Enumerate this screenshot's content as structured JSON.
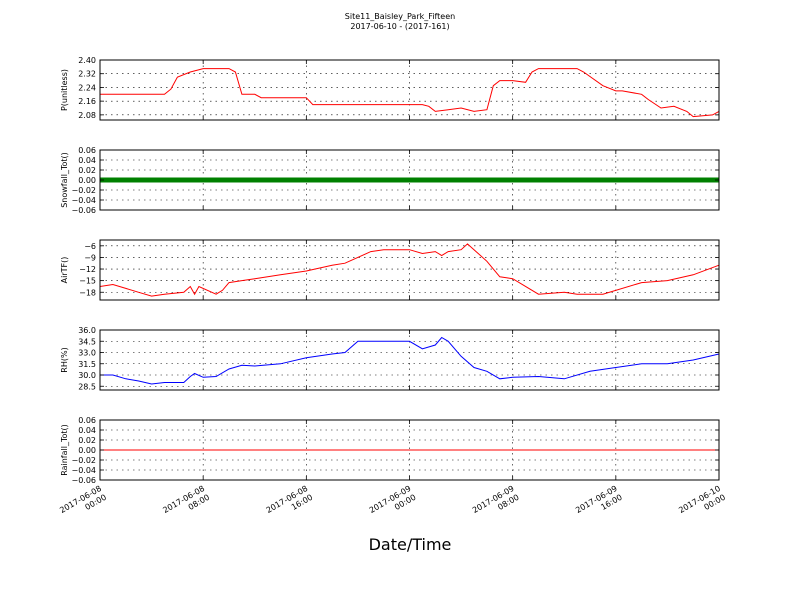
{
  "title": "Site11_Baisley_Park_Fifteen",
  "subtitle": "2017-06-10 - (2017-161)",
  "xlabel": "Date/Time",
  "x_ticks": [
    {
      "line1": "2017-06-08",
      "line2": "00:00"
    },
    {
      "line1": "2017-06-08",
      "line2": "08:00"
    },
    {
      "line1": "2017-06-08",
      "line2": "16:00"
    },
    {
      "line1": "2017-06-09",
      "line2": "00:00"
    },
    {
      "line1": "2017-06-09",
      "line2": "08:00"
    },
    {
      "line1": "2017-06-09",
      "line2": "16:00"
    },
    {
      "line1": "2017-06-10",
      "line2": "00:00"
    }
  ],
  "chart_data": [
    {
      "type": "line",
      "ylabel": "P(unitless)",
      "ylim": [
        2.05,
        2.4
      ],
      "yticks": [
        "2.40",
        "2.32",
        "2.24",
        "2.16",
        "2.08"
      ],
      "ytick_values": [
        2.4,
        2.32,
        2.24,
        2.16,
        2.08
      ],
      "xlim": [
        "2017-06-08 00:00",
        "2017-06-10 00:00"
      ],
      "grid": true,
      "series": [
        {
          "color": "#ff0000",
          "x": [
            "2017-06-08 00:00",
            "2017-06-08 05:00",
            "2017-06-08 05:30",
            "2017-06-08 06:00",
            "2017-06-08 07:00",
            "2017-06-08 08:00",
            "2017-06-08 10:00",
            "2017-06-08 10:30",
            "2017-06-08 11:00",
            "2017-06-08 12:00",
            "2017-06-08 12:30",
            "2017-06-08 16:00",
            "2017-06-08 16:30",
            "2017-06-09 01:00",
            "2017-06-09 01:30",
            "2017-06-09 02:00",
            "2017-06-09 03:00",
            "2017-06-09 04:00",
            "2017-06-09 05:00",
            "2017-06-09 06:00",
            "2017-06-09 06:30",
            "2017-06-09 07:00",
            "2017-06-09 08:00",
            "2017-06-09 09:00",
            "2017-06-09 09:30",
            "2017-06-09 10:00",
            "2017-06-09 13:00",
            "2017-06-09 13:30",
            "2017-06-09 15:00",
            "2017-06-09 16:00",
            "2017-06-09 16:30",
            "2017-06-09 18:00",
            "2017-06-09 18:30",
            "2017-06-09 19:30",
            "2017-06-09 20:30",
            "2017-06-09 21:30",
            "2017-06-09 22:00",
            "2017-06-09 23:30",
            "2017-06-10 00:00"
          ],
          "y": [
            2.2,
            2.2,
            2.23,
            2.3,
            2.33,
            2.35,
            2.35,
            2.33,
            2.2,
            2.2,
            2.18,
            2.18,
            2.14,
            2.14,
            2.13,
            2.1,
            2.11,
            2.12,
            2.1,
            2.11,
            2.25,
            2.28,
            2.28,
            2.27,
            2.33,
            2.35,
            2.35,
            2.33,
            2.25,
            2.22,
            2.22,
            2.2,
            2.17,
            2.12,
            2.13,
            2.1,
            2.07,
            2.08,
            2.1
          ]
        }
      ]
    },
    {
      "type": "scatter",
      "ylabel": "Snowfall_Tot()",
      "ylim": [
        -0.06,
        0.06
      ],
      "yticks": [
        "0.06",
        "0.04",
        "0.02",
        "0.00",
        "−0.02",
        "−0.04",
        "−0.06"
      ],
      "ytick_values": [
        0.06,
        0.04,
        0.02,
        0.0,
        -0.02,
        -0.04,
        -0.06
      ],
      "xlim": [
        "2017-06-08 00:00",
        "2017-06-10 00:00"
      ],
      "grid": true,
      "series": [
        {
          "color": "#008000",
          "x": [
            "2017-06-08 00:00",
            "2017-06-10 00:00"
          ],
          "y": [
            0.0,
            0.0
          ],
          "dense_markers": true
        }
      ]
    },
    {
      "type": "line",
      "ylabel": "AirTF()",
      "ylim": [
        -20,
        -4.5
      ],
      "yticks": [
        "−6",
        "−9",
        "−12",
        "−15",
        "−18"
      ],
      "ytick_values": [
        -6,
        -9,
        -12,
        -15,
        -18
      ],
      "xlim": [
        "2017-06-08 00:00",
        "2017-06-10 00:00"
      ],
      "grid": true,
      "series": [
        {
          "color": "#ff0000",
          "x": [
            "2017-06-08 00:00",
            "2017-06-08 01:00",
            "2017-06-08 02:00",
            "2017-06-08 03:00",
            "2017-06-08 04:00",
            "2017-06-08 05:00",
            "2017-06-08 06:30",
            "2017-06-08 07:00",
            "2017-06-08 07:20",
            "2017-06-08 07:40",
            "2017-06-08 09:00",
            "2017-06-08 09:30",
            "2017-06-08 10:00",
            "2017-06-08 11:00",
            "2017-06-08 12:00",
            "2017-06-08 14:00",
            "2017-06-08 16:00",
            "2017-06-08 18:00",
            "2017-06-08 19:00",
            "2017-06-08 21:00",
            "2017-06-08 22:00",
            "2017-06-09 00:00",
            "2017-06-09 01:00",
            "2017-06-09 02:00",
            "2017-06-09 02:30",
            "2017-06-09 03:00",
            "2017-06-09 04:00",
            "2017-06-09 04:30",
            "2017-06-09 05:00",
            "2017-06-09 06:00",
            "2017-06-09 07:00",
            "2017-06-09 08:00",
            "2017-06-09 10:00",
            "2017-06-09 12:00",
            "2017-06-09 13:00",
            "2017-06-09 15:00",
            "2017-06-09 18:00",
            "2017-06-09 20:00",
            "2017-06-09 22:00",
            "2017-06-10 00:00"
          ],
          "y": [
            -16.5,
            -16.0,
            -17.0,
            -18.0,
            -19.0,
            -18.5,
            -18.0,
            -16.5,
            -18.5,
            -16.5,
            -18.5,
            -17.5,
            -15.5,
            -15.0,
            -14.5,
            -13.5,
            -12.5,
            -11.0,
            -10.5,
            -7.5,
            -7.0,
            -7.0,
            -8.0,
            -7.5,
            -8.5,
            -7.5,
            -7.0,
            -5.5,
            -7.0,
            -10.0,
            -14.0,
            -14.5,
            -18.5,
            -18.0,
            -18.5,
            -18.5,
            -15.5,
            -15.0,
            -13.5,
            -11.0
          ]
        }
      ]
    },
    {
      "type": "line",
      "ylabel": "RH(%)",
      "ylim": [
        28.0,
        36.0
      ],
      "yticks": [
        "36.0",
        "34.5",
        "33.0",
        "31.5",
        "30.0",
        "28.5"
      ],
      "ytick_values": [
        36.0,
        34.5,
        33.0,
        31.5,
        30.0,
        28.5
      ],
      "xlim": [
        "2017-06-08 00:00",
        "2017-06-10 00:00"
      ],
      "grid": true,
      "series": [
        {
          "color": "#0000ff",
          "x": [
            "2017-06-08 00:00",
            "2017-06-08 01:00",
            "2017-06-08 02:00",
            "2017-06-08 03:00",
            "2017-06-08 04:00",
            "2017-06-08 05:00",
            "2017-06-08 06:00",
            "2017-06-08 06:30",
            "2017-06-08 07:00",
            "2017-06-08 07:20",
            "2017-06-08 08:00",
            "2017-06-08 09:00",
            "2017-06-08 10:00",
            "2017-06-08 11:00",
            "2017-06-08 12:00",
            "2017-06-08 14:00",
            "2017-06-08 16:00",
            "2017-06-08 18:00",
            "2017-06-08 19:00",
            "2017-06-08 20:00",
            "2017-06-08 22:00",
            "2017-06-09 00:00",
            "2017-06-09 01:00",
            "2017-06-09 02:00",
            "2017-06-09 02:30",
            "2017-06-09 03:00",
            "2017-06-09 04:00",
            "2017-06-09 05:00",
            "2017-06-09 06:00",
            "2017-06-09 07:00",
            "2017-06-09 08:00",
            "2017-06-09 10:00",
            "2017-06-09 12:00",
            "2017-06-09 14:00",
            "2017-06-09 16:00",
            "2017-06-09 18:00",
            "2017-06-09 20:00",
            "2017-06-09 22:00",
            "2017-06-10 00:00"
          ],
          "y": [
            30.0,
            30.0,
            29.5,
            29.2,
            28.8,
            29.0,
            29.0,
            29.0,
            29.8,
            30.2,
            29.7,
            29.8,
            30.8,
            31.3,
            31.2,
            31.5,
            32.3,
            32.8,
            33.0,
            34.5,
            34.5,
            34.5,
            33.5,
            34.0,
            35.0,
            34.5,
            32.5,
            31.0,
            30.5,
            29.5,
            29.7,
            29.8,
            29.5,
            30.5,
            31.0,
            31.5,
            31.5,
            32.0,
            32.8
          ]
        }
      ]
    },
    {
      "type": "line",
      "ylabel": "Rainfall_Tot()",
      "ylim": [
        -0.06,
        0.06
      ],
      "yticks": [
        "0.06",
        "0.04",
        "0.02",
        "0.00",
        "−0.02",
        "−0.04",
        "−0.06"
      ],
      "ytick_values": [
        0.06,
        0.04,
        0.02,
        0.0,
        -0.02,
        -0.04,
        -0.06
      ],
      "xlim": [
        "2017-06-08 00:00",
        "2017-06-10 00:00"
      ],
      "grid": true,
      "series": [
        {
          "color": "#ff0000",
          "x": [
            "2017-06-08 00:00",
            "2017-06-10 00:00"
          ],
          "y": [
            0.0,
            0.0
          ]
        }
      ]
    }
  ]
}
